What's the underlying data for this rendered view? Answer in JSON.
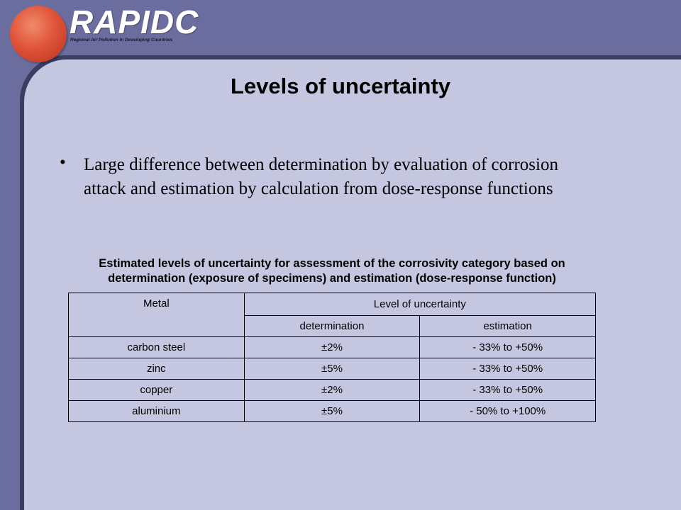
{
  "logo": {
    "name": "RAPIDC",
    "tagline": "Regional Air Pollution In Developing Countries"
  },
  "slide": {
    "title": "Levels of uncertainty",
    "bullet_symbol": "•",
    "bullet": "Large difference between determination by evaluation of corrosion attack and estimation by calculation from dose-response functions"
  },
  "table": {
    "caption_line1": "Estimated levels of uncertainty for assessment of the corrosivity category based on",
    "caption_line2": "determination (exposure of specimens) and estimation (dose-response function)",
    "headers": {
      "metal": "Metal",
      "level": "Level of uncertainty",
      "determination": "determination",
      "estimation": "estimation"
    },
    "rows": [
      {
        "metal": "carbon steel",
        "determination": "±2%",
        "estimation": "- 33% to +50%"
      },
      {
        "metal": "zinc",
        "determination": "±5%",
        "estimation": "- 33% to +50%"
      },
      {
        "metal": "copper",
        "determination": "±2%",
        "estimation": "- 33% to +50%"
      },
      {
        "metal": "aluminium",
        "determination": "±5%",
        "estimation": "- 50% to +100%"
      }
    ]
  }
}
